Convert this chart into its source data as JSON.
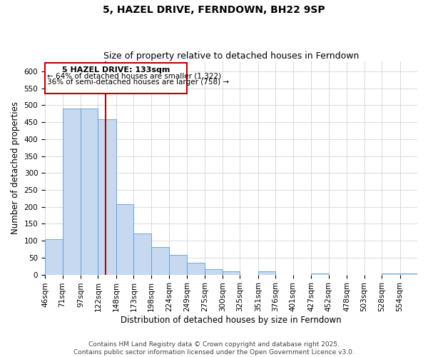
{
  "title": "5, HAZEL DRIVE, FERNDOWN, BH22 9SP",
  "subtitle": "Size of property relative to detached houses in Ferndown",
  "xlabel": "Distribution of detached houses by size in Ferndown",
  "ylabel": "Number of detached properties",
  "bin_labels": [
    "46sqm",
    "71sqm",
    "97sqm",
    "122sqm",
    "148sqm",
    "173sqm",
    "198sqm",
    "224sqm",
    "249sqm",
    "275sqm",
    "300sqm",
    "325sqm",
    "351sqm",
    "376sqm",
    "401sqm",
    "427sqm",
    "452sqm",
    "478sqm",
    "503sqm",
    "528sqm",
    "554sqm"
  ],
  "bin_edges": [
    46,
    71,
    97,
    122,
    148,
    173,
    198,
    224,
    249,
    275,
    300,
    325,
    351,
    376,
    401,
    427,
    452,
    478,
    503,
    528,
    554,
    579
  ],
  "bar_heights": [
    105,
    490,
    490,
    458,
    208,
    122,
    82,
    58,
    35,
    15,
    10,
    0,
    10,
    0,
    0,
    4,
    0,
    0,
    0,
    4,
    4
  ],
  "bar_color": "#c6d9f0",
  "bar_edge_color": "#5b9bd5",
  "vline_x": 133,
  "vline_color": "#c00000",
  "annotation_title": "5 HAZEL DRIVE: 133sqm",
  "annotation_line1": "← 64% of detached houses are smaller (1,322)",
  "annotation_line2": "36% of semi-detached houses are larger (758) →",
  "annotation_box_color": "#ffffff",
  "annotation_box_edge": "#c00000",
  "ylim": [
    0,
    630
  ],
  "yticks": [
    0,
    50,
    100,
    150,
    200,
    250,
    300,
    350,
    400,
    450,
    500,
    550,
    600
  ],
  "footer1": "Contains HM Land Registry data © Crown copyright and database right 2025.",
  "footer2": "Contains public sector information licensed under the Open Government Licence v3.0.",
  "background_color": "#ffffff",
  "grid_color": "#d4d4d4",
  "title_fontsize": 10,
  "subtitle_fontsize": 9,
  "axis_label_fontsize": 8.5,
  "tick_fontsize": 7.5,
  "annotation_title_fontsize": 8,
  "annotation_text_fontsize": 7.5,
  "footer_fontsize": 6.5
}
